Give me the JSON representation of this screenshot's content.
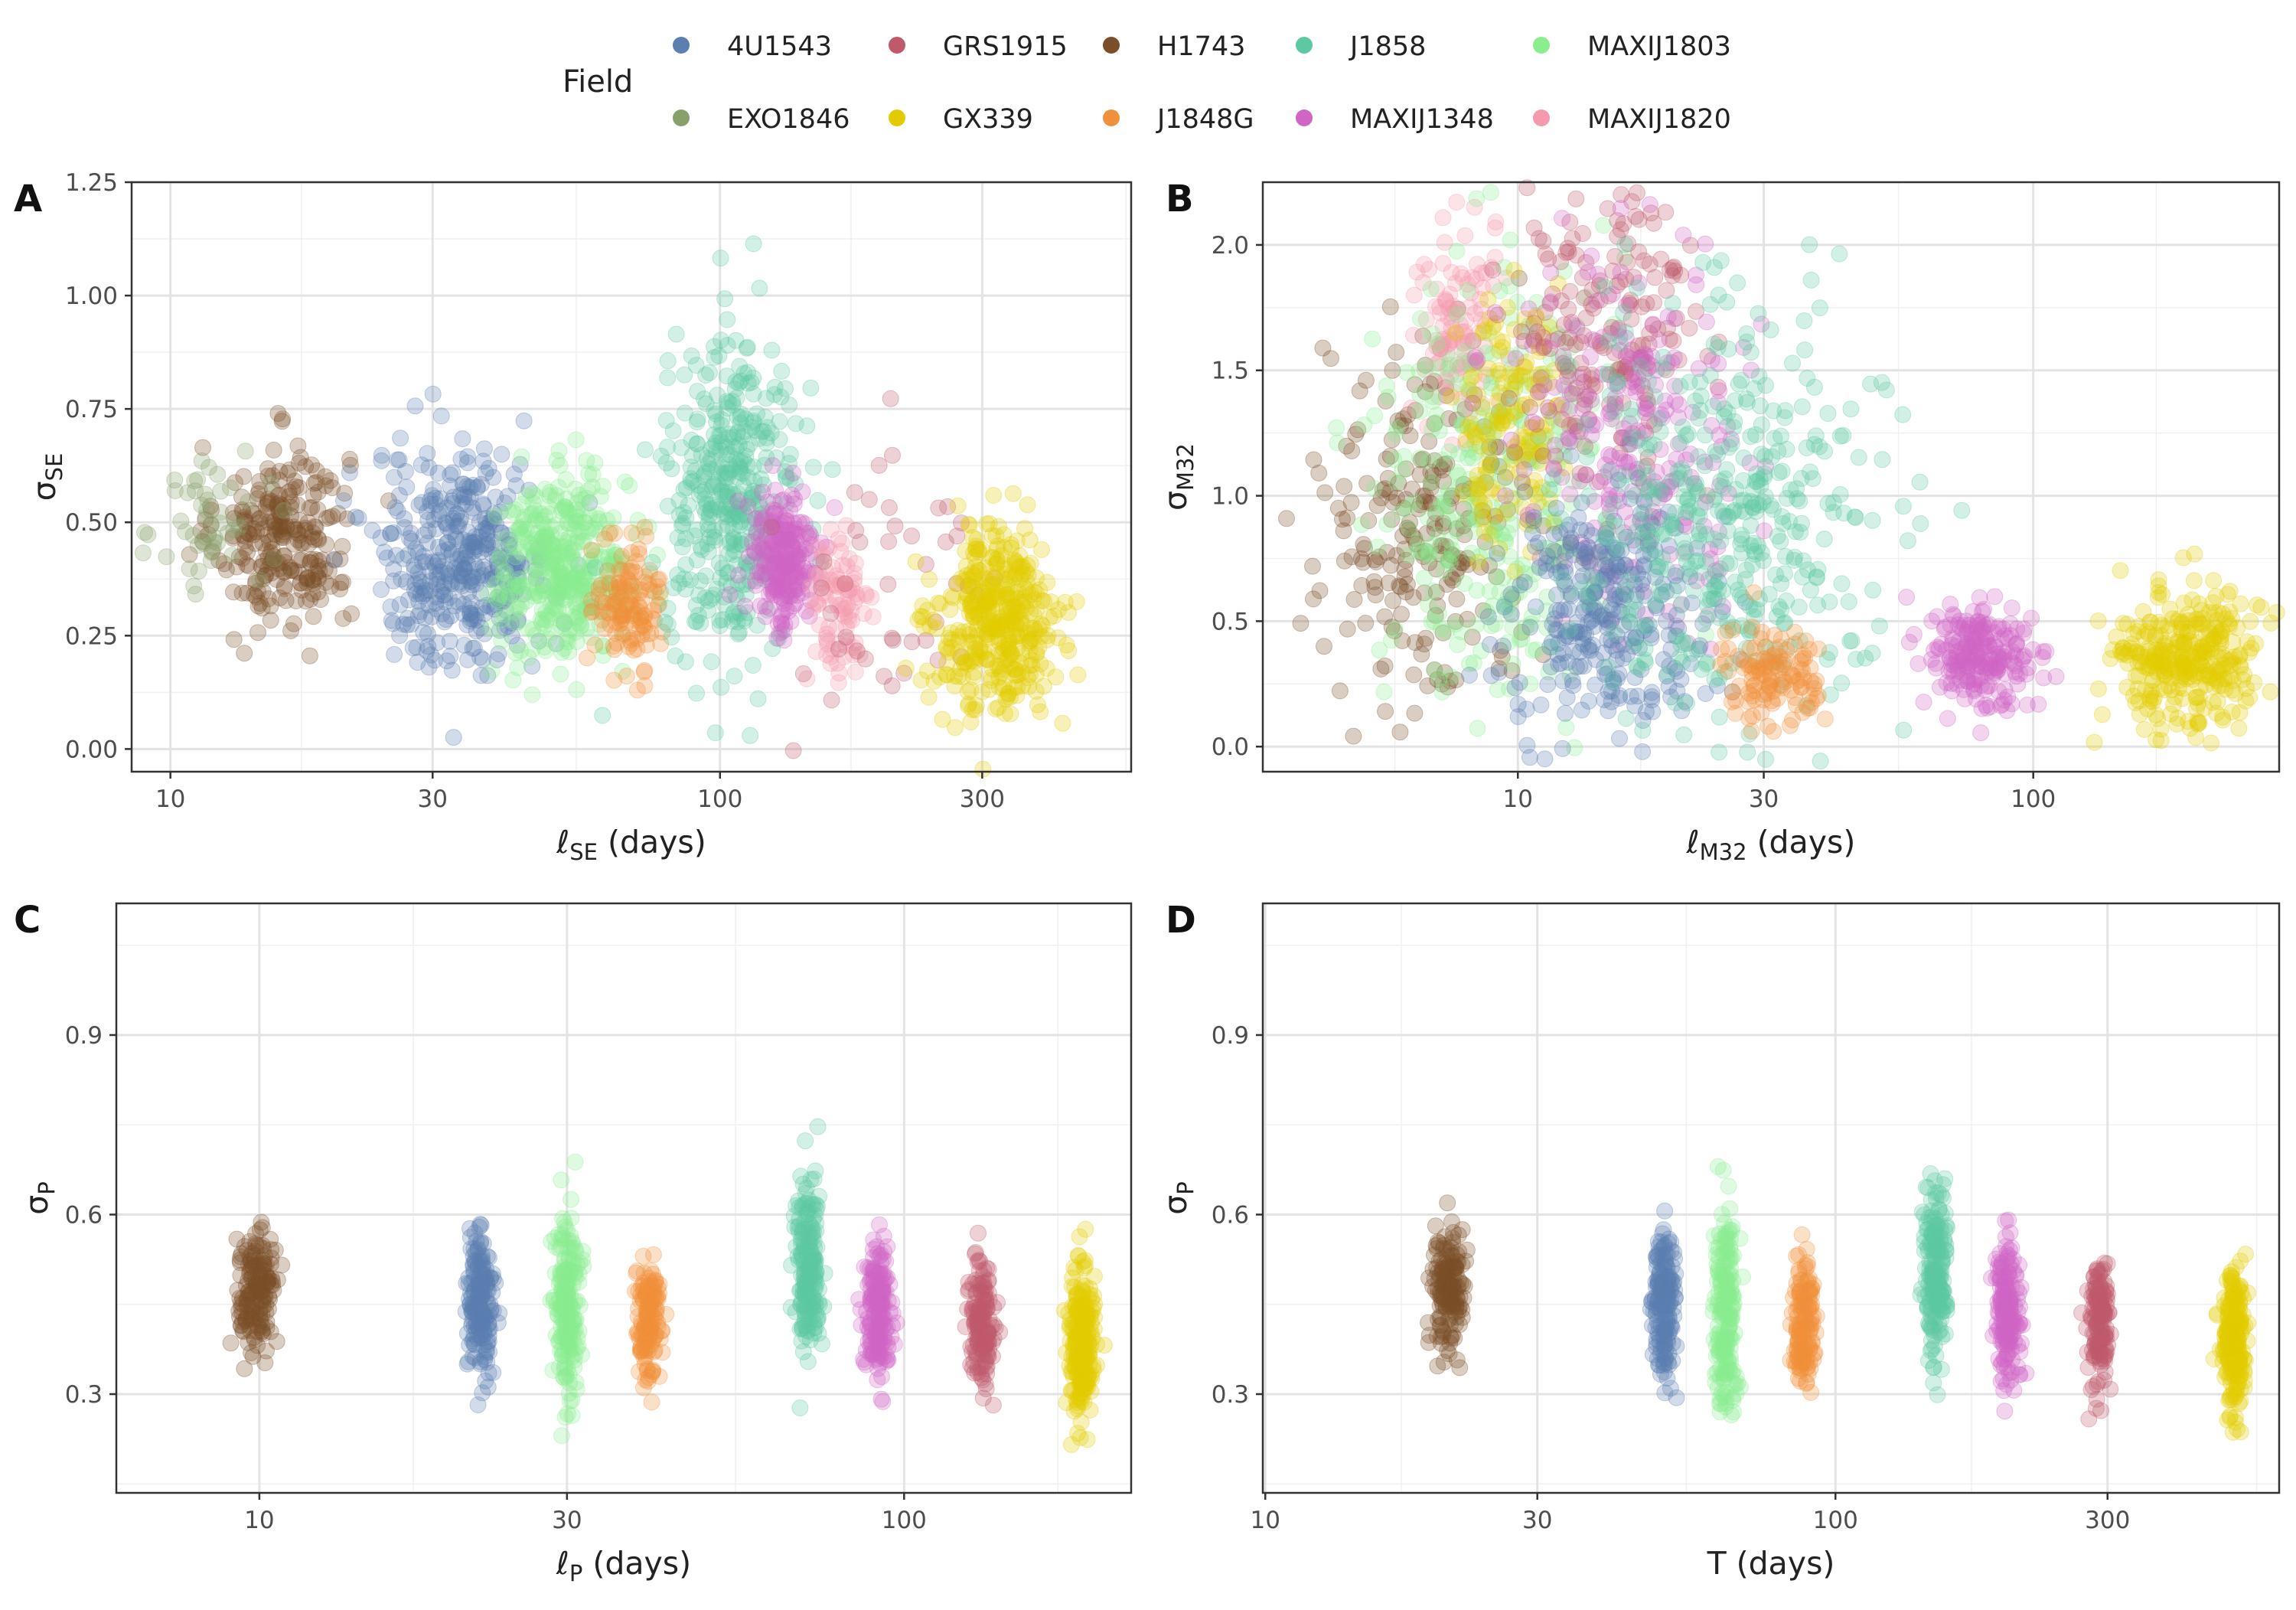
{
  "legend": {
    "title": "Field",
    "entries": [
      {
        "name": "4U1543",
        "color": "#5b7fb0"
      },
      {
        "name": "GRS1915",
        "color": "#c0596b"
      },
      {
        "name": "H1743",
        "color": "#7a4e28"
      },
      {
        "name": "J1858",
        "color": "#5cc9a3"
      },
      {
        "name": "MAXIJ1803",
        "color": "#8aee8e"
      },
      {
        "name": "EXO1846",
        "color": "#88a06a"
      },
      {
        "name": "GX339",
        "color": "#e2cc00"
      },
      {
        "name": "J1848G",
        "color": "#f0903a"
      },
      {
        "name": "MAXIJ1348",
        "color": "#cf66c4"
      },
      {
        "name": "MAXIJ1820",
        "color": "#f59aae"
      }
    ]
  },
  "chart_data": [
    {
      "type": "scatter",
      "panel": "A",
      "xlabel": "ℓSE (days)",
      "ylabel": "σSE",
      "xscale": "log",
      "xlim": [
        8.5,
        560
      ],
      "ylim": [
        -0.05,
        1.25
      ],
      "xticks": [
        10,
        30,
        100,
        300
      ],
      "yticks": [
        0,
        0.25,
        0.5,
        0.75,
        1.0,
        1.25
      ],
      "ytick_labels": [
        "0.00",
        "0.25",
        "0.50",
        "0.75",
        "1.00",
        "1.25"
      ],
      "grid": true,
      "clusters": [
        {
          "series": "H1743",
          "x_center": 16,
          "x_spread": 0.12,
          "y_center": 0.47,
          "y_spread": 0.1,
          "n": 260
        },
        {
          "series": "EXO1846",
          "x_center": 12,
          "x_spread": 0.1,
          "y_center": 0.5,
          "y_spread": 0.08,
          "n": 50
        },
        {
          "series": "4U1543",
          "x_center": 34,
          "x_spread": 0.16,
          "y_center": 0.42,
          "y_spread": 0.12,
          "n": 380
        },
        {
          "series": "MAXIJ1803",
          "x_center": 52,
          "x_spread": 0.12,
          "y_center": 0.4,
          "y_spread": 0.1,
          "n": 380
        },
        {
          "series": "J1848G",
          "x_center": 68,
          "x_spread": 0.06,
          "y_center": 0.32,
          "y_spread": 0.07,
          "n": 130
        },
        {
          "series": "J1858",
          "x_center": 105,
          "x_spread": 0.12,
          "y_center": 0.55,
          "y_spread": 0.17,
          "n": 380
        },
        {
          "series": "MAXIJ1348",
          "x_center": 130,
          "x_spread": 0.06,
          "y_center": 0.42,
          "y_spread": 0.08,
          "n": 230
        },
        {
          "series": "MAXIJ1820",
          "x_center": 165,
          "x_spread": 0.06,
          "y_center": 0.3,
          "y_spread": 0.09,
          "n": 90
        },
        {
          "series": "GRS1915",
          "x_center": 210,
          "x_spread": 0.2,
          "y_center": 0.35,
          "y_spread": 0.2,
          "n": 45
        },
        {
          "series": "GX339",
          "x_center": 320,
          "x_spread": 0.11,
          "y_center": 0.28,
          "y_spread": 0.1,
          "n": 400
        }
      ]
    },
    {
      "type": "scatter",
      "panel": "B",
      "xlabel": "ℓM32 (days)",
      "ylabel": "σM32",
      "xscale": "log",
      "xlim": [
        3.2,
        300
      ],
      "ylim": [
        -0.1,
        2.25
      ],
      "xticks": [
        10,
        30,
        100
      ],
      "yticks": [
        0,
        0.5,
        1.0,
        1.5,
        2.0
      ],
      "ytick_labels": [
        "0.0",
        "0.5",
        "1.0",
        "1.5",
        "2.0"
      ],
      "grid": true,
      "clusters": [
        {
          "series": "H1743",
          "x_center": 6.5,
          "x_spread": 0.2,
          "y_center": 0.9,
          "y_spread": 0.35,
          "n": 240
        },
        {
          "series": "MAXIJ1820",
          "x_center": 7.6,
          "x_spread": 0.08,
          "y_center": 1.7,
          "y_spread": 0.22,
          "n": 110
        },
        {
          "series": "MAXIJ1803",
          "x_center": 9,
          "x_spread": 0.22,
          "y_center": 1.05,
          "y_spread": 0.45,
          "n": 330
        },
        {
          "series": "GX339",
          "x_center": 9.5,
          "x_spread": 0.1,
          "y_center": 1.3,
          "y_spread": 0.25,
          "n": 140
        },
        {
          "series": "GRS1915",
          "x_center": 15,
          "x_spread": 0.18,
          "y_center": 1.65,
          "y_spread": 0.3,
          "n": 200
        },
        {
          "series": "MAXIJ1348",
          "x_center": 17,
          "x_spread": 0.22,
          "y_center": 1.25,
          "y_spread": 0.35,
          "n": 240
        },
        {
          "series": "4U1543",
          "x_center": 15,
          "x_spread": 0.2,
          "y_center": 0.55,
          "y_spread": 0.22,
          "n": 300
        },
        {
          "series": "J1858",
          "x_center": 25,
          "x_spread": 0.3,
          "y_center": 0.9,
          "y_spread": 0.4,
          "n": 420
        },
        {
          "series": "J1848G",
          "x_center": 31,
          "x_spread": 0.1,
          "y_center": 0.3,
          "y_spread": 0.1,
          "n": 120
        },
        {
          "series": "MAXIJ1348",
          "x_center": 80,
          "x_spread": 0.1,
          "y_center": 0.35,
          "y_spread": 0.1,
          "n": 220
        },
        {
          "series": "GX339",
          "x_center": 200,
          "x_spread": 0.14,
          "y_center": 0.35,
          "y_spread": 0.14,
          "n": 320
        }
      ]
    },
    {
      "type": "scatter",
      "panel": "C",
      "xlabel": "ℓP (days)",
      "ylabel": "σP",
      "xscale": "log",
      "xlim": [
        6,
        225
      ],
      "ylim": [
        0.135,
        1.12
      ],
      "xticks": [
        10,
        30,
        100
      ],
      "yticks": [
        0.3,
        0.6,
        0.9
      ],
      "ytick_labels": [
        "0.3",
        "0.6",
        "0.9"
      ],
      "grid": true,
      "clusters": [
        {
          "series": "H1743",
          "x_center": 9.9,
          "x_spread": 0.03,
          "y_center": 0.47,
          "y_spread": 0.05,
          "n": 160
        },
        {
          "series": "4U1543",
          "x_center": 22,
          "x_spread": 0.02,
          "y_center": 0.46,
          "y_spread": 0.06,
          "n": 180
        },
        {
          "series": "MAXIJ1803",
          "x_center": 30,
          "x_spread": 0.02,
          "y_center": 0.44,
          "y_spread": 0.08,
          "n": 200
        },
        {
          "series": "J1848G",
          "x_center": 40,
          "x_spread": 0.02,
          "y_center": 0.42,
          "y_spread": 0.05,
          "n": 140
        },
        {
          "series": "J1858",
          "x_center": 71,
          "x_spread": 0.02,
          "y_center": 0.5,
          "y_spread": 0.07,
          "n": 200
        },
        {
          "series": "MAXIJ1348",
          "x_center": 91,
          "x_spread": 0.02,
          "y_center": 0.44,
          "y_spread": 0.06,
          "n": 180
        },
        {
          "series": "GRS1915",
          "x_center": 132,
          "x_spread": 0.02,
          "y_center": 0.42,
          "y_spread": 0.05,
          "n": 150
        },
        {
          "series": "GX339",
          "x_center": 188,
          "x_spread": 0.02,
          "y_center": 0.38,
          "y_spread": 0.06,
          "n": 240
        }
      ]
    },
    {
      "type": "scatter",
      "panel": "D",
      "xlabel": "T (days)",
      "ylabel": "σP",
      "xscale": "log",
      "xlim": [
        9.9,
        600
      ],
      "ylim": [
        0.135,
        1.12
      ],
      "xticks": [
        10,
        30,
        100,
        300
      ],
      "yticks": [
        0.3,
        0.6,
        0.9
      ],
      "ytick_labels": [
        "0.3",
        "0.6",
        "0.9"
      ],
      "grid": true,
      "clusters": [
        {
          "series": "H1743",
          "x_center": 21,
          "x_spread": 0.03,
          "y_center": 0.47,
          "y_spread": 0.05,
          "n": 160
        },
        {
          "series": "4U1543",
          "x_center": 50,
          "x_spread": 0.02,
          "y_center": 0.46,
          "y_spread": 0.06,
          "n": 180
        },
        {
          "series": "MAXIJ1803",
          "x_center": 64,
          "x_spread": 0.02,
          "y_center": 0.44,
          "y_spread": 0.08,
          "n": 200
        },
        {
          "series": "J1848G",
          "x_center": 88,
          "x_spread": 0.02,
          "y_center": 0.42,
          "y_spread": 0.05,
          "n": 140
        },
        {
          "series": "J1858",
          "x_center": 150,
          "x_spread": 0.02,
          "y_center": 0.5,
          "y_spread": 0.07,
          "n": 200
        },
        {
          "series": "MAXIJ1348",
          "x_center": 200,
          "x_spread": 0.02,
          "y_center": 0.44,
          "y_spread": 0.06,
          "n": 180
        },
        {
          "series": "GRS1915",
          "x_center": 290,
          "x_spread": 0.02,
          "y_center": 0.42,
          "y_spread": 0.05,
          "n": 150
        },
        {
          "series": "GX339",
          "x_center": 500,
          "x_spread": 0.02,
          "y_center": 0.38,
          "y_spread": 0.06,
          "n": 240
        }
      ]
    }
  ]
}
